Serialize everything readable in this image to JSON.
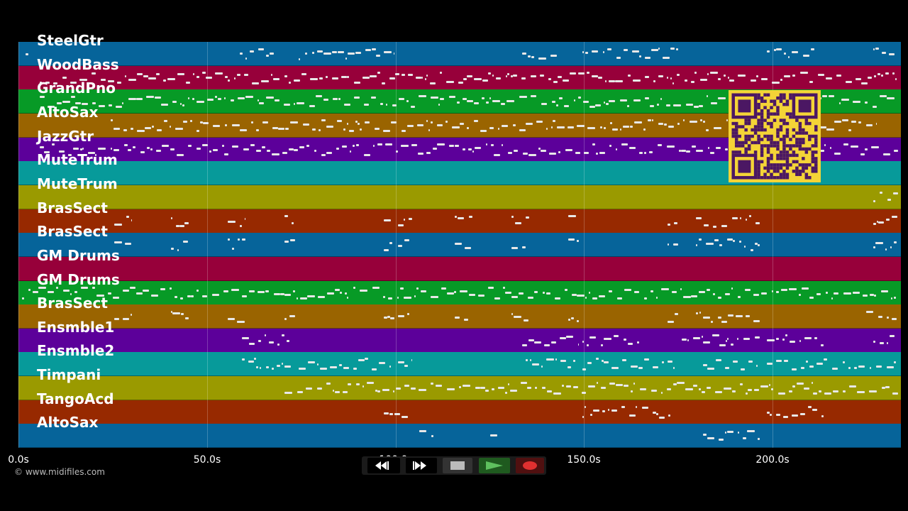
{
  "tracks": [
    {
      "name": "SteelGtr",
      "color": "#06649a"
    },
    {
      "name": "WoodBass",
      "color": "#97003a"
    },
    {
      "name": "GrandPno",
      "color": "#079a26"
    },
    {
      "name": "AltoSax",
      "color": "#9a6400"
    },
    {
      "name": "JazzGtr",
      "color": "#5c009a"
    },
    {
      "name": "MuteTrum",
      "color": "#079a9a"
    },
    {
      "name": "MuteTrum",
      "color": "#9a9a00"
    },
    {
      "name": "BrasSect",
      "color": "#972900"
    },
    {
      "name": "BrasSect",
      "color": "#06649a"
    },
    {
      "name": "GM Drums",
      "color": "#97003a"
    },
    {
      "name": "GM Drums",
      "color": "#079a26"
    },
    {
      "name": "BrasSect",
      "color": "#9a6400"
    },
    {
      "name": "Ensmble1",
      "color": "#5c009a"
    },
    {
      "name": "Ensmble2",
      "color": "#079a9a"
    },
    {
      "name": "Timpani",
      "color": "#9a9a00"
    },
    {
      "name": "TangoAcd",
      "color": "#972900"
    },
    {
      "name": "AltoSax",
      "color": "#06649a"
    }
  ],
  "timeline": {
    "ticks": [
      "0.0s",
      "50.0s",
      "100.0s",
      "150.0s",
      "200.0s"
    ],
    "tick_values": [
      0,
      50,
      100,
      150,
      200
    ],
    "max_seconds": 234
  },
  "copyright": "© www.midifiles.com",
  "controls": {
    "rewind_icon": "rewind-icon",
    "forward_icon": "fast-forward-icon",
    "stop_icon": "stop-icon",
    "play_icon": "play-icon",
    "record_icon": "record-icon"
  },
  "qr_icon": "qr-code-icon"
}
